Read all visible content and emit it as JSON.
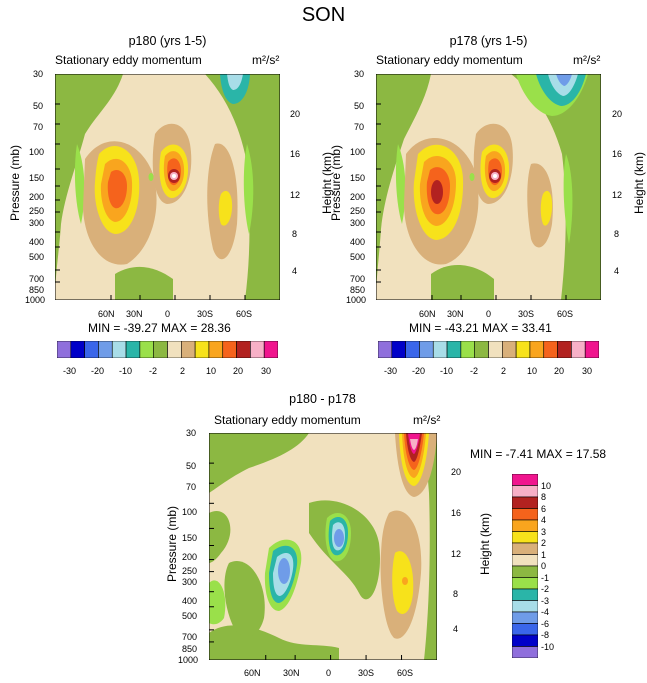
{
  "figure": {
    "title": "SON",
    "panel_left_title": "p180 (yrs 1-5)",
    "panel_right_title": "p178 (yrs 1-5)",
    "panel_bottom_title": "p180 - p178"
  },
  "chart_data": [
    {
      "type": "heatmap",
      "title": "p180 (yrs 1-5)",
      "left_label": "Stationary eddy momentum",
      "units": "m²/s²",
      "xlabel": "",
      "ylabel": "Pressure (mb)",
      "y2label": "Height (km)",
      "x_ticks": [
        "60N",
        "30N",
        "0",
        "30S",
        "60S"
      ],
      "y_ticks": [
        "30",
        "50",
        "70",
        "100",
        "150",
        "200",
        "250",
        "300",
        "400",
        "500",
        "700",
        "850",
        "1000"
      ],
      "y2_ticks": [
        "20",
        "16",
        "12",
        "8",
        "4"
      ],
      "min": -39.27,
      "max": 28.36,
      "stats_text": "MIN = -39.27   MAX =  28.36",
      "colorbar_levels": [
        "-30",
        "-20",
        "-10",
        "-2",
        "2",
        "10",
        "20",
        "30"
      ]
    },
    {
      "type": "heatmap",
      "title": "p178 (yrs 1-5)",
      "left_label": "Stationary eddy momentum",
      "units": "m²/s²",
      "xlabel": "",
      "ylabel": "Pressure (mb)",
      "y2label": "Height (km)",
      "x_ticks": [
        "60N",
        "30N",
        "0",
        "30S",
        "60S"
      ],
      "y_ticks": [
        "30",
        "50",
        "70",
        "100",
        "150",
        "200",
        "250",
        "300",
        "400",
        "500",
        "700",
        "850",
        "1000"
      ],
      "y2_ticks": [
        "20",
        "16",
        "12",
        "8",
        "4"
      ],
      "min": -43.21,
      "max": 33.41,
      "stats_text": "MIN = -43.21   MAX =  33.41",
      "colorbar_levels": [
        "-30",
        "-20",
        "-10",
        "-2",
        "2",
        "10",
        "20",
        "30"
      ]
    },
    {
      "type": "heatmap",
      "title": "p180 - p178",
      "left_label": "Stationary eddy momentum",
      "units": "m²/s²",
      "xlabel": "",
      "ylabel": "Pressure (mb)",
      "y2label": "Height (km)",
      "x_ticks": [
        "60N",
        "30N",
        "0",
        "30S",
        "60S"
      ],
      "y_ticks": [
        "30",
        "50",
        "70",
        "100",
        "150",
        "200",
        "250",
        "300",
        "400",
        "500",
        "700",
        "850",
        "1000"
      ],
      "y2_ticks": [
        "20",
        "16",
        "12",
        "8",
        "4"
      ],
      "min": -7.41,
      "max": 17.58,
      "stats_text": "MIN =  -7.41   MAX =  17.58",
      "colorbar_levels": [
        "10",
        "8",
        "6",
        "4",
        "3",
        "2",
        "1",
        "0",
        "-1",
        "-2",
        "-3",
        "-4",
        "-6",
        "-8",
        "-10"
      ]
    }
  ],
  "colors": {
    "top_colorbar": [
      "#8f6fdc",
      "#0000c8",
      "#3a66ea",
      "#6f9ce8",
      "#a8dde8",
      "#2ab5a8",
      "#9ae04a",
      "#8cb842",
      "#f1e1be",
      "#d9b07a",
      "#f7e21b",
      "#f9a51e",
      "#f5631c",
      "#b22220",
      "#f7b0c7",
      "#f0158e"
    ],
    "diff_colorbar": [
      "#f0158e",
      "#f7b0c7",
      "#b22220",
      "#f5631c",
      "#f9a51e",
      "#f7e21b",
      "#d9b07a",
      "#f1e1be",
      "#8cb842",
      "#9ae04a",
      "#2ab5a8",
      "#a8dde8",
      "#6f9ce8",
      "#3a66ea",
      "#0000c8",
      "#8f6fdc"
    ]
  }
}
